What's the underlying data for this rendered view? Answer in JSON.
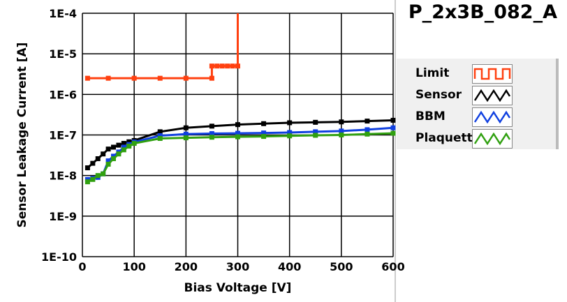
{
  "chart_data": {
    "type": "line",
    "title": "P_2x3B_082_A",
    "xlabel": "Bias Voltage [V]",
    "ylabel": "Sensor Leakage Current [A]",
    "xlim": [
      0,
      600
    ],
    "ylim": [
      1e-10,
      0.0001
    ],
    "yscale": "log",
    "grid": true,
    "legend_position": "right",
    "x_ticks": [
      "0",
      "100",
      "200",
      "300",
      "400",
      "500",
      "600"
    ],
    "y_ticks": [
      "1E-4",
      "1E-5",
      "1E-6",
      "1E-7",
      "1E-8",
      "1E-9",
      "1E-10"
    ],
    "series": [
      {
        "name": "Limit",
        "color": "#ff4010",
        "x": [
          10,
          50,
          100,
          150,
          200,
          250,
          250,
          260,
          270,
          280,
          290,
          300,
          300
        ],
        "y": [
          2.5e-06,
          2.5e-06,
          2.5e-06,
          2.5e-06,
          2.5e-06,
          2.5e-06,
          5e-06,
          5e-06,
          5e-06,
          5e-06,
          5e-06,
          5e-06,
          0.0001
        ]
      },
      {
        "name": "Sensor",
        "color": "#000000",
        "x": [
          10,
          20,
          30,
          40,
          50,
          60,
          70,
          80,
          90,
          100,
          150,
          200,
          250,
          300,
          350,
          400,
          450,
          500,
          550,
          600
        ],
        "y": [
          1.55e-08,
          2e-08,
          2.6e-08,
          3.4e-08,
          4.5e-08,
          5e-08,
          5.6e-08,
          6.2e-08,
          6.8e-08,
          7.3e-08,
          1.2e-07,
          1.5e-07,
          1.65e-07,
          1.8e-07,
          1.9e-07,
          2e-07,
          2.05e-07,
          2.1e-07,
          2.2e-07,
          2.3e-07
        ]
      },
      {
        "name": "BBM",
        "color": "#1040e0",
        "x": [
          10,
          20,
          30,
          40,
          50,
          60,
          70,
          80,
          90,
          100,
          150,
          200,
          250,
          300,
          350,
          400,
          450,
          500,
          550,
          600
        ],
        "y": [
          8e-09,
          8.5e-09,
          9e-09,
          1.1e-08,
          2.3e-08,
          3e-08,
          3.8e-08,
          5e-08,
          5.8e-08,
          6.7e-08,
          9.6e-08,
          1.05e-07,
          1.08e-07,
          1.1e-07,
          1.12e-07,
          1.15e-07,
          1.2e-07,
          1.25e-07,
          1.35e-07,
          1.5e-07
        ]
      },
      {
        "name": "Plaquette",
        "color": "#30a010",
        "x": [
          10,
          20,
          30,
          40,
          50,
          60,
          70,
          80,
          90,
          100,
          150,
          200,
          250,
          300,
          350,
          400,
          450,
          500,
          550,
          600
        ],
        "y": [
          7e-09,
          8e-09,
          1e-08,
          1.1e-08,
          1.9e-08,
          2.6e-08,
          3.4e-08,
          4.3e-08,
          5.3e-08,
          6.2e-08,
          8.2e-08,
          8.5e-08,
          8.8e-08,
          9e-08,
          9.2e-08,
          9.5e-08,
          9.8e-08,
          1e-07,
          1.05e-07,
          1.1e-07
        ]
      }
    ]
  }
}
